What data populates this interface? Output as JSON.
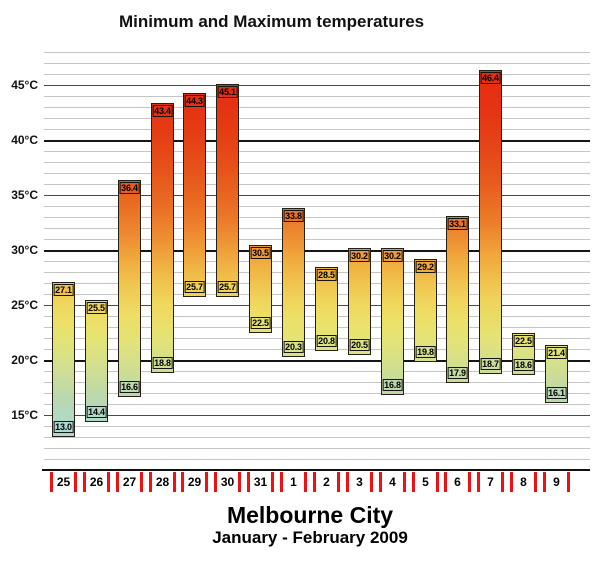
{
  "title": "Minimum and Maximum temperatures",
  "footer": {
    "city": "Melbourne City",
    "period": "January - February 2009"
  },
  "y_axis": {
    "unit": "°C",
    "ticks": [
      {
        "label": "45°C",
        "value": 45
      },
      {
        "label": "40°C",
        "value": 40
      },
      {
        "label": "35°C",
        "value": 35
      },
      {
        "label": "30°C",
        "value": 30
      },
      {
        "label": "25°C",
        "value": 25
      },
      {
        "label": "20°C",
        "value": 20
      },
      {
        "label": "15°C",
        "value": 15
      }
    ]
  },
  "chart_data": {
    "type": "bar",
    "subtype": "floating-range-min-max",
    "title": "Minimum and Maximum temperatures",
    "location": "Melbourne City",
    "period": "January - February 2009",
    "categories": [
      "25",
      "26",
      "27",
      "28",
      "29",
      "30",
      "31",
      "1",
      "2",
      "3",
      "4",
      "5",
      "6",
      "7",
      "8",
      "9"
    ],
    "series": [
      {
        "name": "Minimum",
        "values": [
          13.0,
          14.4,
          16.6,
          18.8,
          25.7,
          25.7,
          22.5,
          20.3,
          20.8,
          20.5,
          16.8,
          19.8,
          17.9,
          18.7,
          18.6,
          16.1
        ]
      },
      {
        "name": "Maximum",
        "values": [
          27.1,
          25.5,
          36.4,
          43.4,
          44.3,
          45.1,
          30.5,
          33.8,
          28.5,
          30.2,
          30.2,
          29.2,
          33.1,
          46.4,
          22.5,
          21.4
        ]
      }
    ],
    "xlabel": "",
    "ylabel": "°C",
    "ylim": [
      10,
      48
    ],
    "grid": {
      "on": true,
      "minor_step": 1,
      "major_step": 5,
      "bold_step": 10
    },
    "legend_position": "none",
    "colors": {
      "grid_minor": "#c5c5c5",
      "grid_mid": "#4a4a4a",
      "grid_major": "#161616",
      "date_tick_red": "#ee1111",
      "bar_border": "#262014",
      "value_label_border": "#151515",
      "color_scale": [
        {
          "t": 11,
          "c": [
            162,
            214,
            220
          ]
        },
        {
          "t": 13,
          "c": [
            168,
            218,
            209
          ]
        },
        {
          "t": 15,
          "c": [
            177,
            218,
            192
          ]
        },
        {
          "t": 17,
          "c": [
            189,
            216,
            168
          ]
        },
        {
          "t": 19,
          "c": [
            207,
            222,
            147
          ]
        },
        {
          "t": 21,
          "c": [
            223,
            227,
            125
          ]
        },
        {
          "t": 23,
          "c": [
            234,
            227,
            107
          ]
        },
        {
          "t": 25,
          "c": [
            240,
            217,
            95
          ]
        },
        {
          "t": 27,
          "c": [
            240,
            196,
            77
          ]
        },
        {
          "t": 29,
          "c": [
            240,
            173,
            61
          ]
        },
        {
          "t": 31,
          "c": [
            238,
            143,
            51
          ]
        },
        {
          "t": 33,
          "c": [
            235,
            119,
            40
          ]
        },
        {
          "t": 35,
          "c": [
            232,
            101,
            31
          ]
        },
        {
          "t": 38,
          "c": [
            230,
            78,
            24
          ]
        },
        {
          "t": 41,
          "c": [
            229,
            58,
            20
          ]
        },
        {
          "t": 44,
          "c": [
            229,
            47,
            18
          ]
        },
        {
          "t": 47,
          "c": [
            232,
            42,
            16
          ]
        }
      ]
    }
  }
}
